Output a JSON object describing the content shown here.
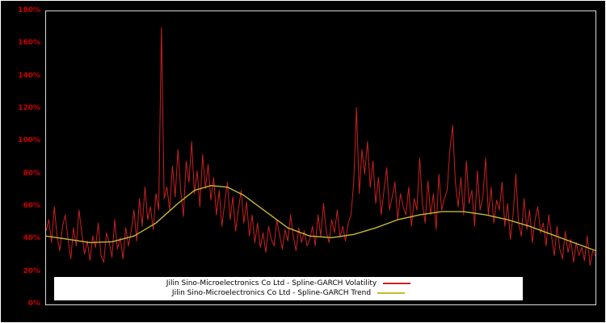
{
  "chart": {
    "background_color": "#000000",
    "plot_border_color": "#d8d8d8",
    "axis_label_color": "#cc0000",
    "legend_background": "#ffffff"
  },
  "chart_data": {
    "type": "line",
    "title": "",
    "xlabel": "",
    "ylabel": "",
    "x_tick_labels_visible": false,
    "grid": false,
    "legend_position": "bottom-center",
    "ylim": [
      0,
      1.8
    ],
    "y_tick_step": 0.2,
    "y_tick_labels": [
      "0%",
      "20%",
      "40%",
      "60%",
      "80%",
      "100%",
      "120%",
      "140%",
      "160%",
      "180%"
    ],
    "series": [
      {
        "name": "Jilin Sino-Microelectronics Co Ltd - Spline-GARCH Volatility",
        "color": "#cc2020",
        "width": 1,
        "values": [
          0.45,
          0.52,
          0.38,
          0.6,
          0.42,
          0.33,
          0.48,
          0.55,
          0.4,
          0.28,
          0.47,
          0.36,
          0.58,
          0.44,
          0.31,
          0.39,
          0.27,
          0.42,
          0.35,
          0.5,
          0.3,
          0.26,
          0.44,
          0.38,
          0.29,
          0.52,
          0.34,
          0.41,
          0.28,
          0.47,
          0.36,
          0.45,
          0.58,
          0.39,
          0.65,
          0.48,
          0.72,
          0.52,
          0.6,
          0.46,
          0.68,
          0.58,
          1.7,
          0.65,
          0.72,
          0.58,
          0.85,
          0.66,
          0.95,
          0.7,
          0.54,
          0.88,
          0.75,
          1.0,
          0.68,
          0.82,
          0.6,
          0.92,
          0.71,
          0.86,
          0.64,
          0.78,
          0.55,
          0.7,
          0.48,
          0.62,
          0.75,
          0.52,
          0.66,
          0.45,
          0.58,
          0.7,
          0.5,
          0.63,
          0.42,
          0.55,
          0.38,
          0.5,
          0.35,
          0.44,
          0.32,
          0.48,
          0.4,
          0.36,
          0.52,
          0.43,
          0.34,
          0.46,
          0.39,
          0.55,
          0.42,
          0.33,
          0.47,
          0.38,
          0.45,
          0.36,
          0.4,
          0.48,
          0.36,
          0.55,
          0.42,
          0.62,
          0.45,
          0.38,
          0.52,
          0.44,
          0.58,
          0.41,
          0.48,
          0.39,
          0.5,
          0.55,
          0.75,
          1.21,
          0.68,
          0.95,
          0.8,
          1.0,
          0.72,
          0.88,
          0.62,
          0.78,
          0.55,
          0.7,
          0.84,
          0.58,
          0.66,
          0.75,
          0.52,
          0.68,
          0.6,
          0.55,
          0.72,
          0.48,
          0.65,
          0.58,
          0.9,
          0.62,
          0.5,
          0.76,
          0.55,
          0.68,
          0.46,
          0.8,
          0.58,
          0.65,
          0.7,
          0.95,
          1.1,
          0.75,
          0.6,
          0.78,
          0.55,
          0.88,
          0.62,
          0.7,
          0.48,
          0.82,
          0.58,
          0.66,
          0.9,
          0.55,
          0.72,
          0.5,
          0.64,
          0.58,
          0.75,
          0.48,
          0.62,
          0.4,
          0.55,
          0.8,
          0.5,
          0.42,
          0.65,
          0.46,
          0.58,
          0.38,
          0.52,
          0.6,
          0.44,
          0.5,
          0.36,
          0.55,
          0.42,
          0.3,
          0.48,
          0.34,
          0.28,
          0.45,
          0.32,
          0.4,
          0.26,
          0.38,
          0.3,
          0.35,
          0.27,
          0.42,
          0.24,
          0.33,
          0.3
        ]
      },
      {
        "name": "Jilin Sino-Microelectronics Co Ltd - Spline-GARCH Trend",
        "color": "#c8b832",
        "width": 1.4,
        "points": [
          [
            0.0,
            0.42
          ],
          [
            0.04,
            0.4
          ],
          [
            0.08,
            0.38
          ],
          [
            0.12,
            0.385
          ],
          [
            0.16,
            0.42
          ],
          [
            0.2,
            0.5
          ],
          [
            0.24,
            0.62
          ],
          [
            0.27,
            0.7
          ],
          [
            0.3,
            0.73
          ],
          [
            0.33,
            0.72
          ],
          [
            0.36,
            0.67
          ],
          [
            0.4,
            0.57
          ],
          [
            0.44,
            0.47
          ],
          [
            0.48,
            0.42
          ],
          [
            0.52,
            0.41
          ],
          [
            0.56,
            0.43
          ],
          [
            0.6,
            0.47
          ],
          [
            0.64,
            0.52
          ],
          [
            0.68,
            0.55
          ],
          [
            0.72,
            0.57
          ],
          [
            0.76,
            0.57
          ],
          [
            0.8,
            0.55
          ],
          [
            0.84,
            0.52
          ],
          [
            0.88,
            0.48
          ],
          [
            0.92,
            0.43
          ],
          [
            0.96,
            0.38
          ],
          [
            1.0,
            0.33
          ]
        ]
      }
    ]
  }
}
